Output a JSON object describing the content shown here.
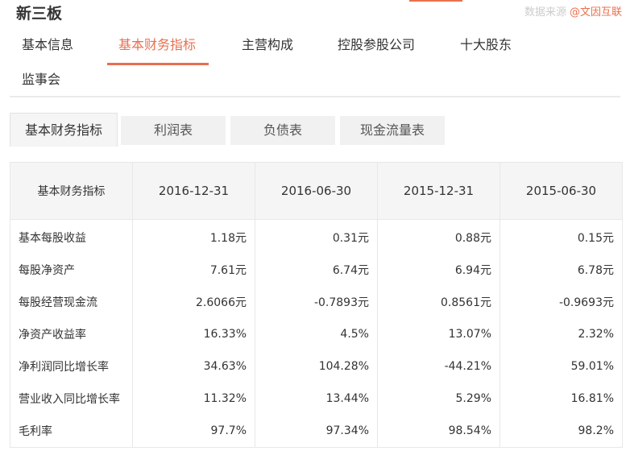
{
  "header": {
    "title": "新三板",
    "source_label": "数据来源",
    "source_link": "@文因互联",
    "accent_color": "#e8704f"
  },
  "nav": {
    "items": [
      {
        "label": "基本信息"
      },
      {
        "label": "基本财务指标"
      },
      {
        "label": "主营构成"
      },
      {
        "label": "控股参股公司"
      },
      {
        "label": "十大股东"
      },
      {
        "label": "监事会"
      }
    ],
    "active_index": 1
  },
  "subtabs": {
    "items": [
      {
        "label": "基本财务指标"
      },
      {
        "label": "利润表"
      },
      {
        "label": "负债表"
      },
      {
        "label": "现金流量表"
      }
    ],
    "active_index": 0
  },
  "table": {
    "headers": [
      "基本财务指标",
      "2016-12-31",
      "2016-06-30",
      "2015-12-31",
      "2015-06-30"
    ],
    "rows": [
      {
        "label": "基本每股收益",
        "values": [
          "1.18元",
          "0.31元",
          "0.88元",
          "0.15元"
        ]
      },
      {
        "label": "每股净资产",
        "values": [
          "7.61元",
          "6.74元",
          "6.94元",
          "6.78元"
        ]
      },
      {
        "label": "每股经营现金流",
        "values": [
          "2.6066元",
          "-0.7893元",
          "0.8561元",
          "-0.9693元"
        ]
      },
      {
        "label": "净资产收益率",
        "values": [
          "16.33%",
          "4.5%",
          "13.07%",
          "2.32%"
        ]
      },
      {
        "label": "净利润同比增长率",
        "values": [
          "34.63%",
          "104.28%",
          "-44.21%",
          "59.01%"
        ]
      },
      {
        "label": "营业收入同比增长率",
        "values": [
          "11.32%",
          "13.44%",
          "5.29%",
          "16.81%"
        ]
      },
      {
        "label": "毛利率",
        "values": [
          "97.7%",
          "97.34%",
          "98.54%",
          "98.2%"
        ]
      }
    ]
  }
}
